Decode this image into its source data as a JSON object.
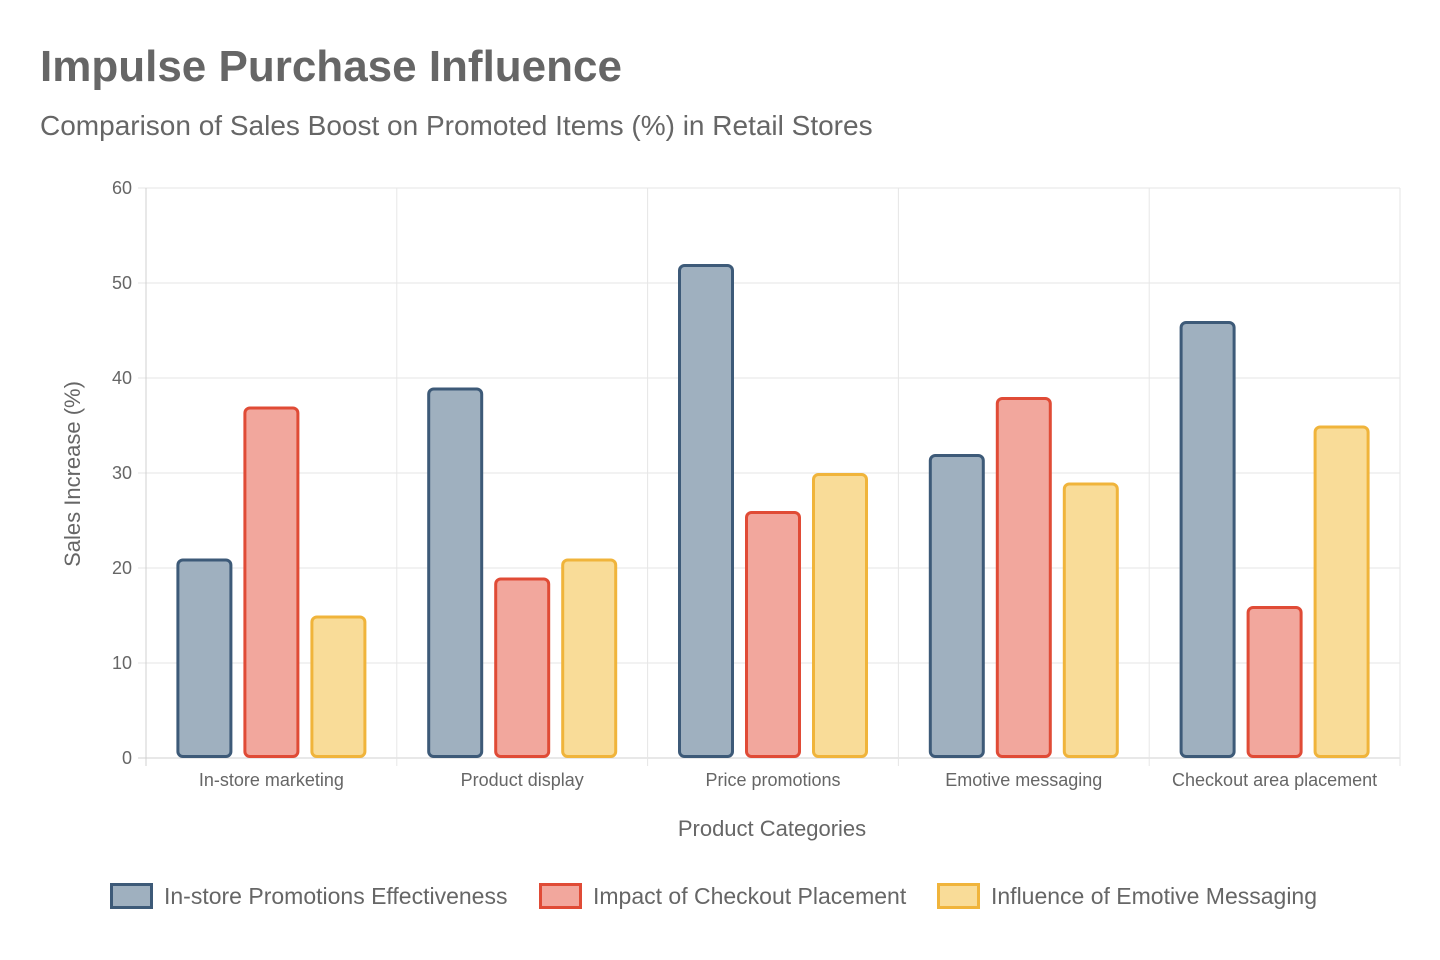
{
  "chart_data": {
    "type": "bar",
    "title": "Impulse Purchase Influence",
    "subtitle": "Comparison of Sales Boost on Promoted Items (%) in Retail Stores",
    "xlabel": "Product Categories",
    "ylabel": "Sales Increase (%)",
    "ylim": [
      0,
      60
    ],
    "yticks": [
      0,
      10,
      20,
      30,
      40,
      50,
      60
    ],
    "grid": true,
    "legend_position": "bottom",
    "categories": [
      "In-store marketing",
      "Product display",
      "Price promotions",
      "Emotive messaging",
      "Checkout area placement"
    ],
    "series": [
      {
        "name": "In-store Promotions Effectiveness",
        "values": [
          21,
          39,
          52,
          32,
          46
        ],
        "color": "#3d5a78",
        "fill": "#9fb0bf"
      },
      {
        "name": "Impact of Checkout Placement",
        "values": [
          37,
          19,
          26,
          38,
          16
        ],
        "color": "#e04b36",
        "fill": "#f2a79d"
      },
      {
        "name": "Influence of Emotive Messaging",
        "values": [
          15,
          21,
          30,
          29,
          35
        ],
        "color": "#f0b43b",
        "fill": "#f9dc98"
      }
    ]
  }
}
